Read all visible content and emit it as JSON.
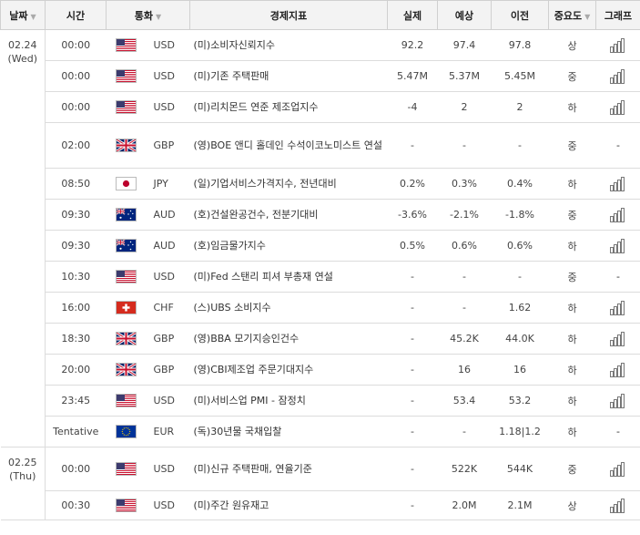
{
  "header": {
    "date": "날짜",
    "time": "시간",
    "currency": "통화",
    "indicator": "경제지표",
    "actual": "실제",
    "forecast": "예상",
    "previous": "이전",
    "importance": "중요도",
    "graph": "그래프"
  },
  "dates": [
    {
      "line1": "02.24",
      "line2": "(Wed)"
    },
    {
      "line1": "02.25",
      "line2": "(Thu)"
    }
  ],
  "rows": [
    {
      "time": "00:00",
      "flag": "us",
      "currency": "USD",
      "indicator": "(미)소비자신뢰지수",
      "actual": "92.2",
      "forecast": "97.4",
      "previous": "97.8",
      "importance": "상",
      "graph": "graph-icon"
    },
    {
      "time": "00:00",
      "flag": "us",
      "currency": "USD",
      "indicator": "(미)기존 주택판매",
      "actual": "5.47M",
      "forecast": "5.37M",
      "previous": "5.45M",
      "importance": "중",
      "graph": "graph-icon"
    },
    {
      "time": "00:00",
      "flag": "us",
      "currency": "USD",
      "indicator": "(미)리치몬드 연준 제조업지수",
      "actual": "-4",
      "forecast": "2",
      "previous": "2",
      "importance": "하",
      "graph": "graph-icon"
    },
    {
      "time": "02:00",
      "flag": "gb",
      "currency": "GBP",
      "indicator": "(영)BOE 앤디 홀데인 수석이코노미스트 연설",
      "actual": "-",
      "forecast": "-",
      "previous": "-",
      "importance": "중",
      "graph": "-"
    },
    {
      "time": "08:50",
      "flag": "jp",
      "currency": "JPY",
      "indicator": "(일)기업서비스가격지수, 전년대비",
      "actual": "0.2%",
      "forecast": "0.3%",
      "previous": "0.4%",
      "importance": "하",
      "graph": "graph-icon"
    },
    {
      "time": "09:30",
      "flag": "au",
      "currency": "AUD",
      "indicator": "(호)건설완공건수, 전분기대비",
      "actual": "-3.6%",
      "forecast": "-2.1%",
      "previous": "-1.8%",
      "importance": "중",
      "graph": "graph-icon"
    },
    {
      "time": "09:30",
      "flag": "au",
      "currency": "AUD",
      "indicator": "(호)임금물가지수",
      "actual": "0.5%",
      "forecast": "0.6%",
      "previous": "0.6%",
      "importance": "하",
      "graph": "graph-icon"
    },
    {
      "time": "10:30",
      "flag": "us",
      "currency": "USD",
      "indicator": "(미)Fed 스탠리 피셔 부총재 연설",
      "actual": "-",
      "forecast": "-",
      "previous": "-",
      "importance": "중",
      "graph": "-"
    },
    {
      "time": "16:00",
      "flag": "ch",
      "currency": "CHF",
      "indicator": "(스)UBS 소비지수",
      "actual": "-",
      "forecast": "-",
      "previous": "1.62",
      "importance": "하",
      "graph": "graph-icon"
    },
    {
      "time": "18:30",
      "flag": "gb",
      "currency": "GBP",
      "indicator": "(영)BBA 모기지승인건수",
      "actual": "-",
      "forecast": "45.2K",
      "previous": "44.0K",
      "importance": "하",
      "graph": "graph-icon"
    },
    {
      "time": "20:00",
      "flag": "gb",
      "currency": "GBP",
      "indicator": "(영)CBI제조업 주문기대지수",
      "actual": "-",
      "forecast": "16",
      "previous": "16",
      "importance": "하",
      "graph": "graph-icon"
    },
    {
      "time": "23:45",
      "flag": "us",
      "currency": "USD",
      "indicator": "(미)서비스업 PMI - 잠정치",
      "actual": "-",
      "forecast": "53.4",
      "previous": "53.2",
      "importance": "하",
      "graph": "graph-icon"
    },
    {
      "time": "Tentative",
      "flag": "eu",
      "currency": "EUR",
      "indicator": "(독)30년물 국채입찰",
      "actual": "-",
      "forecast": "-",
      "previous": "1.18|1.2",
      "importance": "하",
      "graph": "-"
    },
    {
      "time": "00:00",
      "flag": "us",
      "currency": "USD",
      "indicator": "(미)신규 주택판매, 연율기준",
      "actual": "-",
      "forecast": "522K",
      "previous": "544K",
      "importance": "중",
      "graph": "graph-icon"
    },
    {
      "time": "00:30",
      "flag": "us",
      "currency": "USD",
      "indicator": "(미)주간 원유재고",
      "actual": "-",
      "forecast": "2.0M",
      "previous": "2.1M",
      "importance": "상",
      "graph": "graph-icon"
    }
  ]
}
